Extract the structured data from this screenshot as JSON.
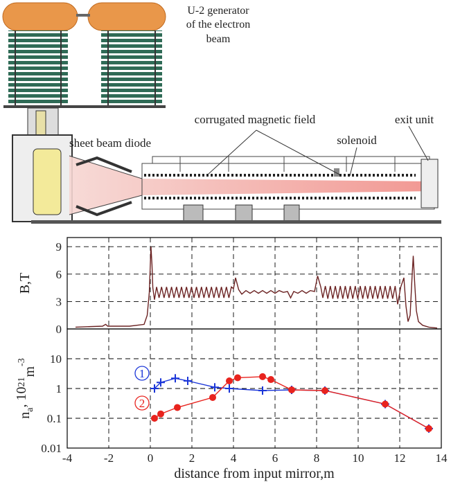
{
  "diagram": {
    "generator_label": [
      "U-2 generator",
      "of the electron",
      "beam"
    ],
    "corrugated_label": "corrugated magnetic field",
    "diode_label": "sheet beam diode",
    "solenoid_label": "solenoid",
    "exit_label": "exit unit"
  },
  "chart_data": [
    {
      "type": "line",
      "ylabel": "B,T",
      "xlim": [
        -4,
        14
      ],
      "xticks": [
        -4,
        -2,
        0,
        2,
        4,
        6,
        8,
        10,
        12,
        14
      ],
      "ylim": [
        0,
        10
      ],
      "yticks": [
        0,
        3,
        6,
        9
      ],
      "grid": true,
      "x": [
        -3.6,
        -2.3,
        -2.15,
        -2.05,
        -1,
        -0.3,
        -0.15,
        -0.05,
        0.03,
        0.08,
        0.12,
        0.2,
        0.3,
        0.42,
        0.54,
        0.66,
        0.78,
        0.9,
        1.02,
        1.14,
        1.26,
        1.38,
        1.5,
        1.62,
        1.74,
        1.86,
        1.98,
        2.1,
        2.22,
        2.34,
        2.46,
        2.58,
        2.7,
        2.82,
        2.94,
        3.06,
        3.18,
        3.3,
        3.42,
        3.54,
        3.66,
        3.78,
        3.9,
        4.0,
        4.1,
        4.25,
        4.4,
        4.6,
        4.8,
        5.0,
        5.2,
        5.4,
        5.6,
        5.8,
        6.0,
        6.2,
        6.4,
        6.6,
        6.75,
        6.9,
        7.1,
        7.3,
        7.5,
        7.7,
        7.9,
        8.05,
        8.2,
        8.3,
        8.42,
        8.54,
        8.66,
        8.78,
        8.9,
        9.02,
        9.14,
        9.26,
        9.38,
        9.5,
        9.62,
        9.74,
        9.86,
        9.98,
        10.1,
        10.22,
        10.34,
        10.46,
        10.58,
        10.7,
        10.82,
        10.94,
        11.06,
        11.18,
        11.3,
        11.42,
        11.54,
        11.66,
        11.78,
        11.9,
        12.05,
        12.2,
        12.3,
        12.4,
        12.5,
        12.6,
        12.65,
        12.72,
        12.8,
        12.9,
        13.1,
        13.4,
        13.8
      ],
      "series": [
        {
          "color": "#6b2222",
          "values": [
            0.2,
            0.3,
            0.5,
            0.3,
            0.3,
            0.5,
            1.5,
            4,
            9,
            7,
            4.5,
            3.2,
            4.6,
            3.4,
            4.6,
            3.4,
            4.6,
            3.4,
            4.6,
            3.4,
            4.6,
            3.4,
            4.6,
            3.4,
            4.6,
            3.4,
            4.6,
            3.4,
            4.6,
            3.4,
            4.6,
            3.4,
            4.6,
            3.4,
            4.6,
            3.4,
            4.6,
            3.4,
            4.6,
            3.4,
            4.6,
            3.4,
            4.6,
            4.4,
            5.6,
            4.3,
            3.8,
            4.2,
            3.9,
            4.2,
            3.9,
            4.2,
            3.9,
            4.2,
            3.9,
            4.2,
            4.0,
            4.1,
            3.4,
            4.1,
            3.9,
            4.2,
            3.9,
            4.2,
            4.1,
            5.8,
            4.6,
            3.4,
            4.7,
            3.3,
            4.7,
            3.3,
            4.7,
            3.3,
            4.7,
            3.3,
            4.7,
            3.3,
            4.7,
            3.3,
            4.7,
            3.3,
            4.7,
            3.3,
            4.7,
            3.3,
            4.7,
            3.3,
            4.7,
            3.3,
            4.7,
            3.3,
            4.7,
            3.3,
            4.7,
            3.3,
            4.7,
            2.7,
            4.6,
            5.6,
            2.5,
            0.8,
            1.5,
            6,
            8,
            5,
            2,
            0.8,
            0.4,
            0.2,
            0.1
          ]
        }
      ]
    },
    {
      "type": "line",
      "ylabel_parts": [
        "n",
        "a",
        ", 10",
        "21",
        "m",
        "-3"
      ],
      "xlabel": "distance from input mirror,m",
      "xlim": [
        -4,
        14
      ],
      "xticks": [
        -4,
        -2,
        0,
        2,
        4,
        6,
        8,
        10,
        12,
        14
      ],
      "ylim": [
        0.01,
        100
      ],
      "yticks": [
        0.01,
        0.1,
        1,
        10
      ],
      "log_y": true,
      "grid": true,
      "series": [
        {
          "name": "1",
          "color": "#1a35d8",
          "marker": "+",
          "x": [
            0.2,
            0.5,
            1.2,
            1.8,
            3.1,
            3.8,
            5.4,
            6.8,
            8.4,
            11.3,
            13.4
          ],
          "values": [
            1.0,
            1.6,
            2.2,
            1.8,
            1.1,
            1.0,
            0.85,
            0.9,
            0.85,
            0.3,
            0.045
          ]
        },
        {
          "name": "2",
          "color": "#e8231e",
          "marker": "o",
          "x": [
            0.2,
            0.5,
            1.3,
            3.0,
            3.8,
            4.2,
            5.4,
            5.8,
            6.8,
            8.4,
            11.3,
            13.4
          ],
          "values": [
            0.1,
            0.14,
            0.23,
            0.5,
            1.8,
            2.3,
            2.5,
            2.0,
            0.9,
            0.85,
            0.3,
            0.045
          ]
        }
      ]
    }
  ]
}
